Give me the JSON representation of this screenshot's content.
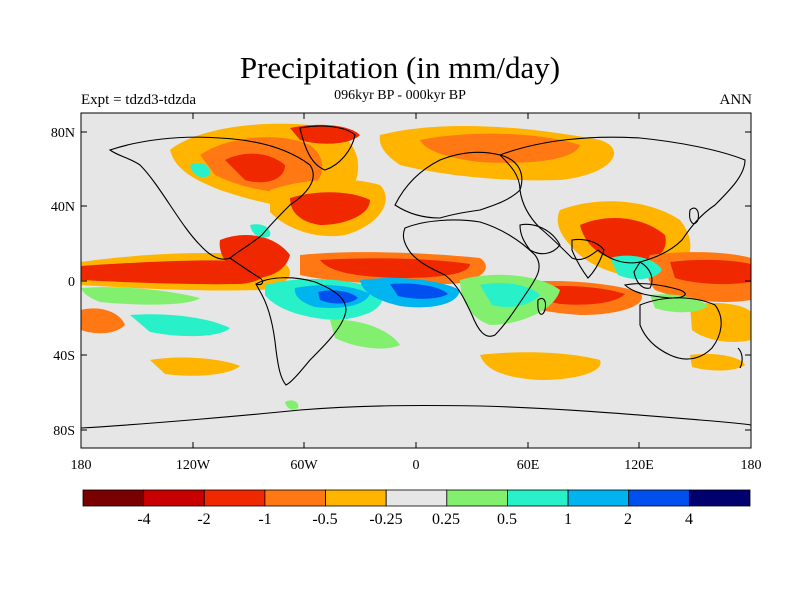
{
  "title": "Precipitation (in mm/day)",
  "subtitle": "096kyr BP - 000kyr BP",
  "left_label": "Expt = tdzd3-tdzda",
  "right_label": "ANN",
  "lat_ticks": [
    "80N",
    "40N",
    "0",
    "40S",
    "80S"
  ],
  "lon_ticks": [
    "180",
    "120W",
    "60W",
    "0",
    "60E",
    "120E",
    "180"
  ],
  "colorbar": {
    "colors": [
      "#7a0000",
      "#c80000",
      "#f02800",
      "#ff7814",
      "#ffb400",
      "#e6e6e6",
      "#82f06e",
      "#28f0c8",
      "#00b4f0",
      "#0050f0",
      "#00006e"
    ],
    "labels": [
      "-4",
      "-2",
      "-1",
      "-0.5",
      "-0.25",
      "0.25",
      "0.5",
      "1",
      "2",
      "4"
    ]
  },
  "palette": {
    "ocean": "#e6e6e6",
    "coast": "#000000"
  }
}
